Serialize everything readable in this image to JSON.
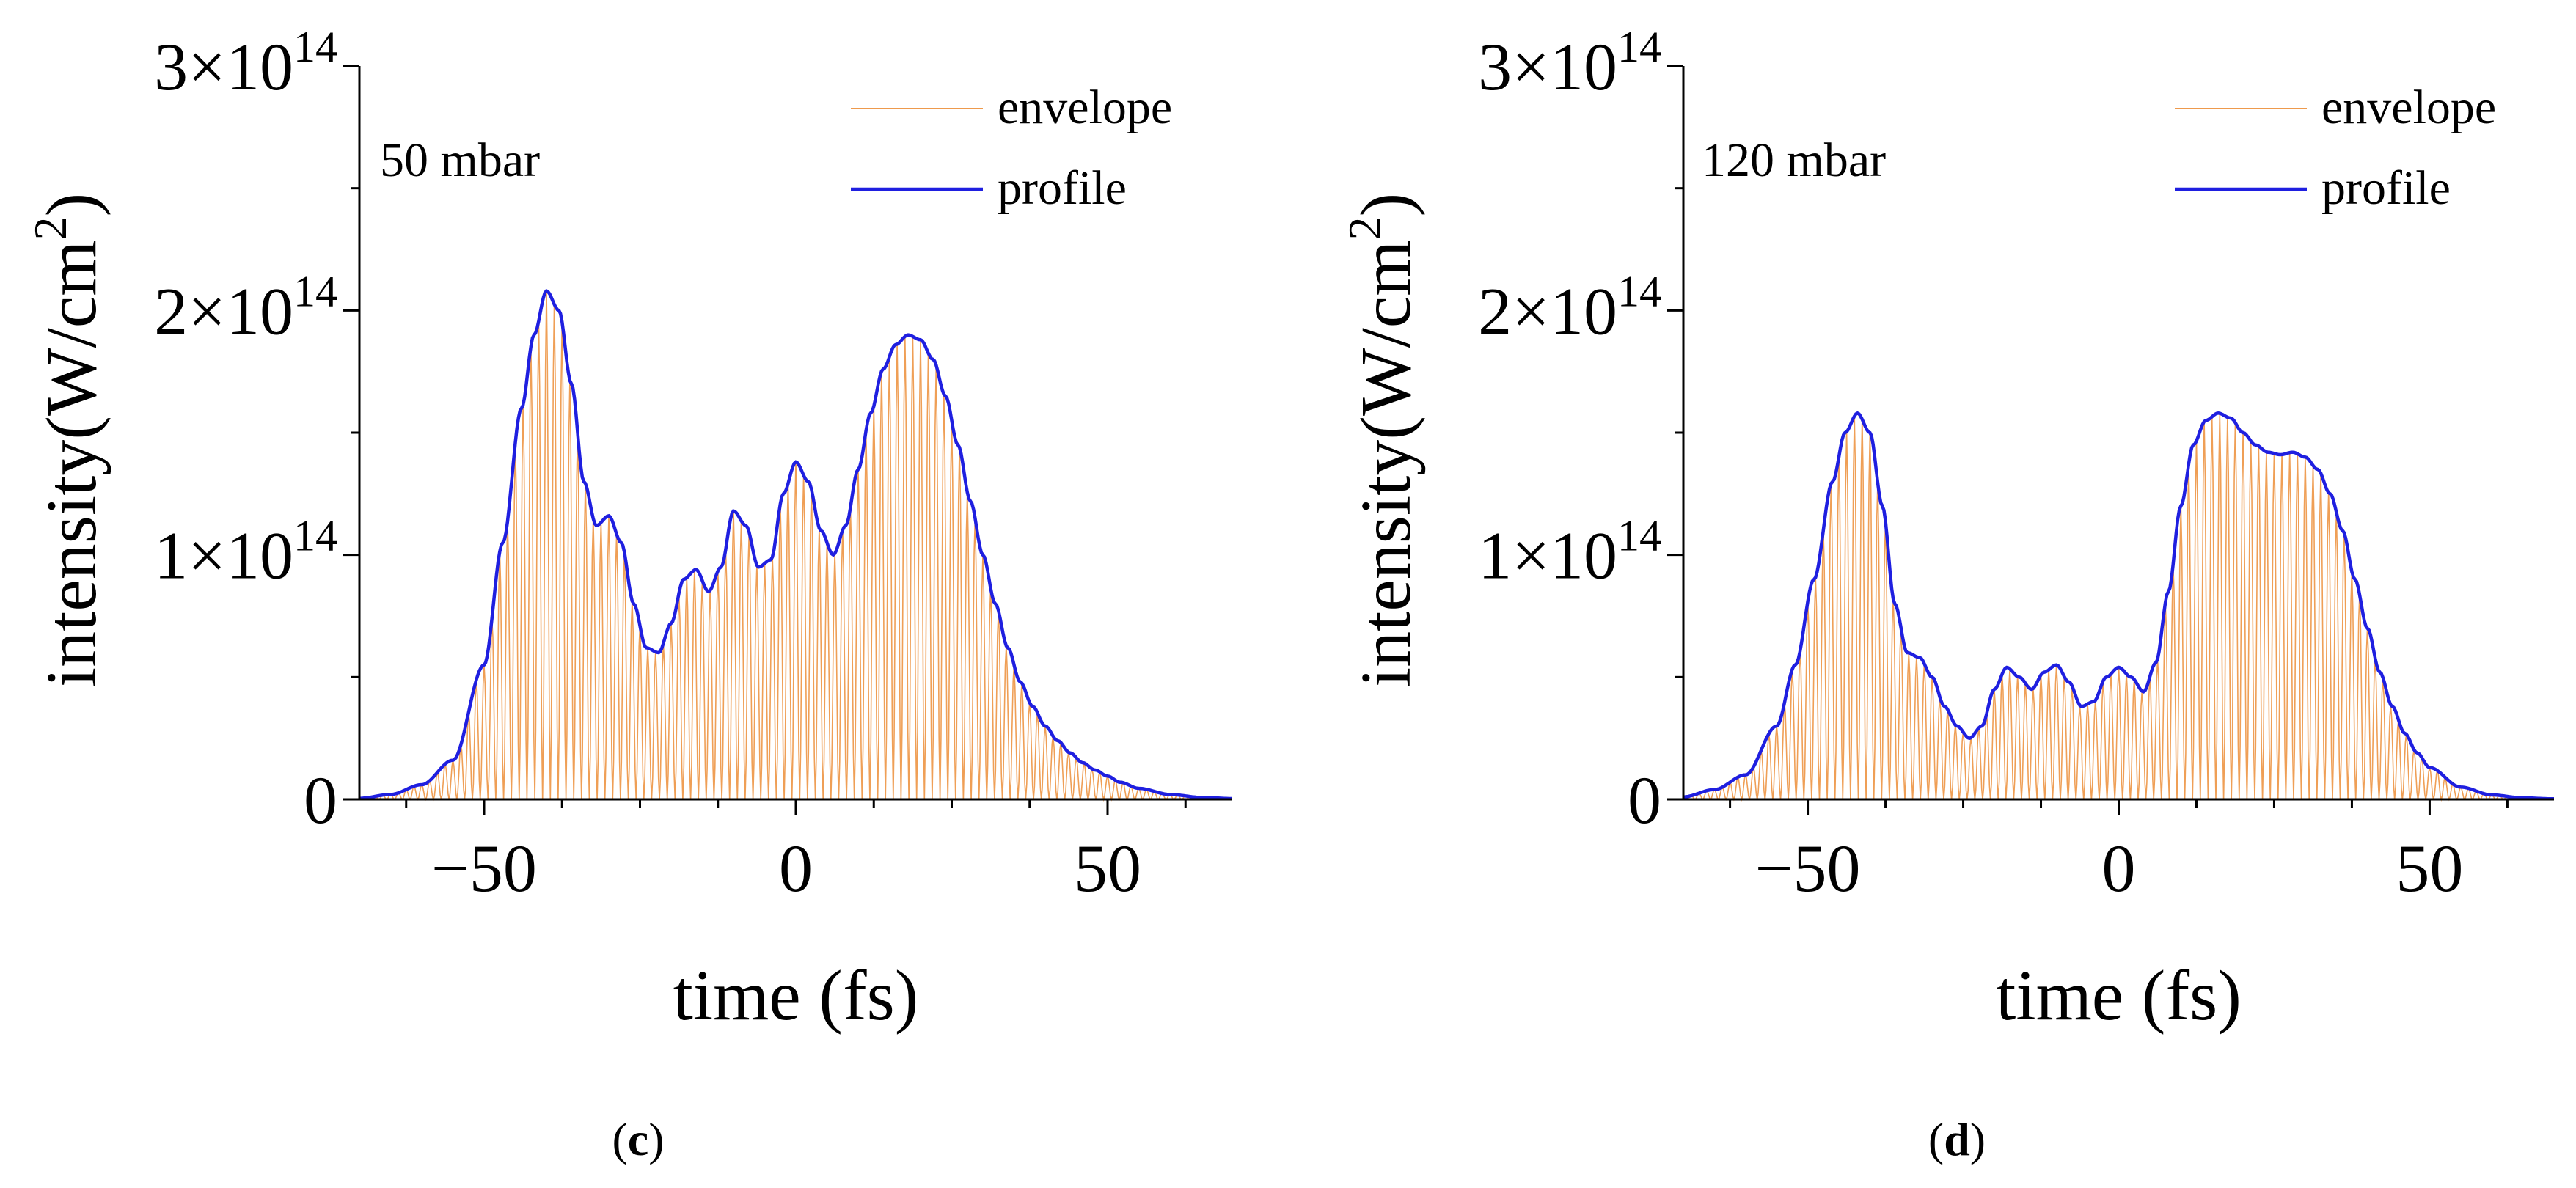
{
  "chart_data": [
    {
      "type": "line",
      "panel": "(c)",
      "annotation": "50 mbar",
      "xlabel": "time (fs)",
      "ylabel": "intensity(W/cm",
      "ylabel_sup": "2",
      "ylabel_close": ")",
      "xlim": [
        -70,
        70
      ],
      "ylim": [
        0,
        300000000000000.0
      ],
      "xticks": [
        -50,
        0,
        50
      ],
      "xtick_labels": [
        "−50",
        "0",
        "50"
      ],
      "yticks": [
        0,
        100000000000000.0,
        200000000000000.0,
        300000000000000.0
      ],
      "ytick_labels": [
        {
          "base": "0",
          "exp": ""
        },
        {
          "base": "1×10",
          "exp": "14"
        },
        {
          "base": "2×10",
          "exp": "14"
        },
        {
          "base": "3×10",
          "exp": "14"
        }
      ],
      "legend": {
        "position": "top-right",
        "entries": [
          {
            "name": "envelope",
            "color": "#ee9a4d"
          },
          {
            "name": "profile",
            "color": "#1f1fe0"
          }
        ]
      },
      "carrier_period_fs": 2.5,
      "series": [
        {
          "name": "envelope",
          "color": "#ee9a4d",
          "description": "fast-oscillating intensity bounded by profile"
        },
        {
          "name": "profile",
          "color": "#1f1fe0",
          "x": [
            -70,
            -65,
            -60,
            -55,
            -50,
            -47,
            -44,
            -42,
            -40,
            -38,
            -36,
            -34,
            -32,
            -30,
            -28,
            -26,
            -24,
            -22,
            -20,
            -18,
            -16,
            -14,
            -12,
            -10,
            -8,
            -6,
            -4,
            -2,
            0,
            2,
            4,
            6,
            8,
            10,
            12,
            14,
            16,
            18,
            20,
            22,
            24,
            26,
            28,
            30,
            32,
            34,
            36,
            38,
            40,
            42,
            44,
            46,
            48,
            50,
            52,
            55,
            60,
            65,
            70
          ],
          "values": [
            400000000000.0,
            2000000000000.0,
            6000000000000.0,
            16000000000000.0,
            55000000000000.0,
            105000000000000.0,
            160000000000000.0,
            190000000000000.0,
            208000000000000.0,
            200000000000000.0,
            170000000000000.0,
            130000000000000.0,
            112000000000000.0,
            116000000000000.0,
            105000000000000.0,
            80000000000000.0,
            62000000000000.0,
            60000000000000.0,
            72000000000000.0,
            90000000000000.0,
            94000000000000.0,
            85000000000000.0,
            95000000000000.0,
            118000000000000.0,
            112000000000000.0,
            95000000000000.0,
            98000000000000.0,
            125000000000000.0,
            138000000000000.0,
            130000000000000.0,
            110000000000000.0,
            100000000000000.0,
            112000000000000.0,
            135000000000000.0,
            158000000000000.0,
            176000000000000.0,
            186000000000000.0,
            190000000000000.0,
            188000000000000.0,
            180000000000000.0,
            165000000000000.0,
            145000000000000.0,
            122000000000000.0,
            100000000000000.0,
            80000000000000.0,
            62000000000000.0,
            48000000000000.0,
            38000000000000.0,
            30000000000000.0,
            24000000000000.0,
            19000000000000.0,
            15000000000000.0,
            12000000000000.0,
            9500000000000.0,
            7000000000000.0,
            4500000000000.0,
            2000000000000.0,
            800000000000.0,
            300000000000.0
          ]
        }
      ]
    },
    {
      "type": "line",
      "panel": "(d)",
      "annotation": "120 mbar",
      "xlabel": "time (fs)",
      "ylabel": "intensity(W/cm",
      "ylabel_sup": "2",
      "ylabel_close": ")",
      "xlim": [
        -70,
        70
      ],
      "ylim": [
        0,
        300000000000000.0
      ],
      "xticks": [
        -50,
        0,
        50
      ],
      "xtick_labels": [
        "−50",
        "0",
        "50"
      ],
      "yticks": [
        0,
        100000000000000.0,
        200000000000000.0,
        300000000000000.0
      ],
      "ytick_labels": [
        {
          "base": "0",
          "exp": ""
        },
        {
          "base": "1×10",
          "exp": "14"
        },
        {
          "base": "2×10",
          "exp": "14"
        },
        {
          "base": "3×10",
          "exp": "14"
        }
      ],
      "legend": {
        "position": "top-right",
        "entries": [
          {
            "name": "envelope",
            "color": "#ee9a4d"
          },
          {
            "name": "profile",
            "color": "#1f1fe0"
          }
        ]
      },
      "carrier_period_fs": 2.5,
      "series": [
        {
          "name": "envelope",
          "color": "#ee9a4d",
          "description": "fast-oscillating intensity bounded by profile"
        },
        {
          "name": "profile",
          "color": "#1f1fe0",
          "x": [
            -70,
            -65,
            -60,
            -55,
            -52,
            -49,
            -46,
            -44,
            -42,
            -40,
            -38,
            -36,
            -34,
            -32,
            -30,
            -28,
            -26,
            -24,
            -22,
            -20,
            -18,
            -16,
            -14,
            -12,
            -10,
            -8,
            -6,
            -4,
            -2,
            0,
            2,
            4,
            6,
            8,
            10,
            12,
            14,
            16,
            18,
            20,
            22,
            24,
            26,
            28,
            30,
            32,
            34,
            36,
            38,
            40,
            42,
            44,
            46,
            48,
            50,
            55,
            60,
            65,
            70
          ],
          "values": [
            1000000000000.0,
            4000000000000.0,
            10000000000000.0,
            30000000000000.0,
            55000000000000.0,
            90000000000000.0,
            130000000000000.0,
            150000000000000.0,
            158000000000000.0,
            150000000000000.0,
            120000000000000.0,
            80000000000000.0,
            60000000000000.0,
            58000000000000.0,
            50000000000000.0,
            38000000000000.0,
            30000000000000.0,
            25000000000000.0,
            30000000000000.0,
            45000000000000.0,
            54000000000000.0,
            50000000000000.0,
            45000000000000.0,
            52000000000000.0,
            55000000000000.0,
            48000000000000.0,
            38000000000000.0,
            40000000000000.0,
            50000000000000.0,
            54000000000000.0,
            50000000000000.0,
            44000000000000.0,
            56000000000000.0,
            85000000000000.0,
            120000000000000.0,
            145000000000000.0,
            155000000000000.0,
            158000000000000.0,
            156000000000000.0,
            150000000000000.0,
            145000000000000.0,
            142000000000000.0,
            141000000000000.0,
            142000000000000.0,
            140000000000000.0,
            135000000000000.0,
            125000000000000.0,
            110000000000000.0,
            90000000000000.0,
            70000000000000.0,
            52000000000000.0,
            38000000000000.0,
            27000000000000.0,
            19000000000000.0,
            13000000000000.0,
            5000000000000.0,
            1800000000000.0,
            600000000000.0,
            200000000000.0
          ]
        }
      ]
    }
  ]
}
